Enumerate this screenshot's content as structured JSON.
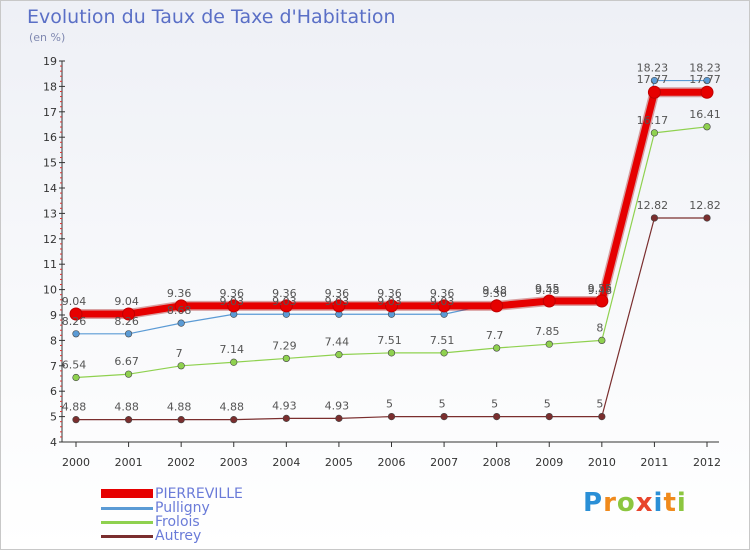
{
  "title": "Evolution du Taux de Taxe d'Habitation",
  "subtitle": "(en %)",
  "chart_data": {
    "type": "line",
    "title": "Evolution du Taux de Taxe d'Habitation",
    "ylabel": "(en %)",
    "ylim": [
      4,
      19
    ],
    "y_ticks": [
      4,
      5,
      6,
      7,
      8,
      9,
      10,
      11,
      12,
      13,
      14,
      15,
      16,
      17,
      18,
      19
    ],
    "categories": [
      "2000",
      "2001",
      "2002",
      "2003",
      "2004",
      "2005",
      "2006",
      "2007",
      "2008",
      "2009",
      "2010",
      "2011",
      "2012"
    ],
    "grid": false,
    "legend_position": "bottom-left",
    "series": [
      {
        "name": "PIERREVILLE",
        "color": "#e60000",
        "values": [
          9.04,
          9.04,
          9.36,
          9.36,
          9.36,
          9.36,
          9.36,
          9.36,
          9.36,
          9.55,
          9.55,
          17.77,
          17.77
        ],
        "labels": [
          "9.04",
          "9.04",
          "9.36",
          "9.36",
          "9.36",
          "9.36",
          "9.36",
          "9.36",
          "9.36",
          "9.55",
          "9.55",
          "17.77",
          "17.77"
        ]
      },
      {
        "name": "Pulligny",
        "color": "#5b9bd5",
        "values": [
          8.26,
          8.26,
          8.68,
          9.03,
          9.03,
          9.03,
          9.03,
          9.03,
          9.48,
          9.48,
          9.48,
          18.23,
          18.23
        ],
        "labels": [
          "8.26",
          "8.26",
          "8.68",
          "9.03",
          "9.03",
          "9.03",
          "9.03",
          "9.03",
          "9.48",
          "9.48",
          "9.48",
          "18.23",
          "18.23"
        ]
      },
      {
        "name": "Frolois",
        "color": "#8fd14f",
        "values": [
          6.54,
          6.67,
          7,
          7.14,
          7.29,
          7.44,
          7.51,
          7.51,
          7.7,
          7.85,
          8,
          16.17,
          16.41
        ],
        "labels": [
          "6.54",
          "6.67",
          "7",
          "7.14",
          "7.29",
          "7.44",
          "7.51",
          "7.51",
          "7.7",
          "7.85",
          "8",
          "16.17",
          "16.41"
        ]
      },
      {
        "name": "Autrey",
        "color": "#7a2e2e",
        "values": [
          4.88,
          4.88,
          4.88,
          4.88,
          4.93,
          4.93,
          5,
          5,
          5,
          5,
          5,
          12.82,
          12.82
        ],
        "labels": [
          "4.88",
          "4.88",
          "4.88",
          "4.88",
          "4.93",
          "4.93",
          "5",
          "5",
          "5",
          "5",
          "5",
          "12.82",
          "12.82"
        ]
      }
    ]
  },
  "legend": [
    {
      "label": "PIERREVILLE",
      "color": "#e60000"
    },
    {
      "label": "Pulligny",
      "color": "#5b9bd5"
    },
    {
      "label": "Frolois",
      "color": "#8fd14f"
    },
    {
      "label": "Autrey",
      "color": "#7a2e2e"
    }
  ],
  "logo": {
    "text": "Proxiti",
    "letter_colors": [
      "#2a8fd6",
      "#f08a1c",
      "#8cc63f",
      "#e8452c",
      "#2a8fd6",
      "#f08a1c",
      "#8cc63f"
    ]
  }
}
